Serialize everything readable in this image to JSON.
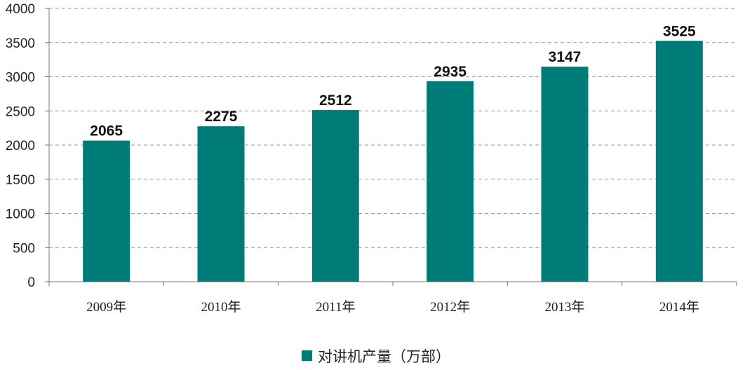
{
  "chart_data": {
    "type": "bar",
    "title": "",
    "xlabel": "",
    "ylabel": "",
    "categories": [
      "2009年",
      "2010年",
      "2011年",
      "2012年",
      "2013年",
      "2014年"
    ],
    "series": [
      {
        "name": "对讲机产量（万部）",
        "values": [
          2065,
          2275,
          2512,
          2935,
          3147,
          3525
        ],
        "color": "#007c78"
      }
    ],
    "ylim": [
      0,
      4000
    ],
    "yticks": [
      0,
      500,
      1000,
      1500,
      2000,
      2500,
      3000,
      3500,
      4000
    ],
    "grid": true,
    "grid_style": "dashed",
    "legend_position": "bottom-center",
    "data_labels": true
  }
}
